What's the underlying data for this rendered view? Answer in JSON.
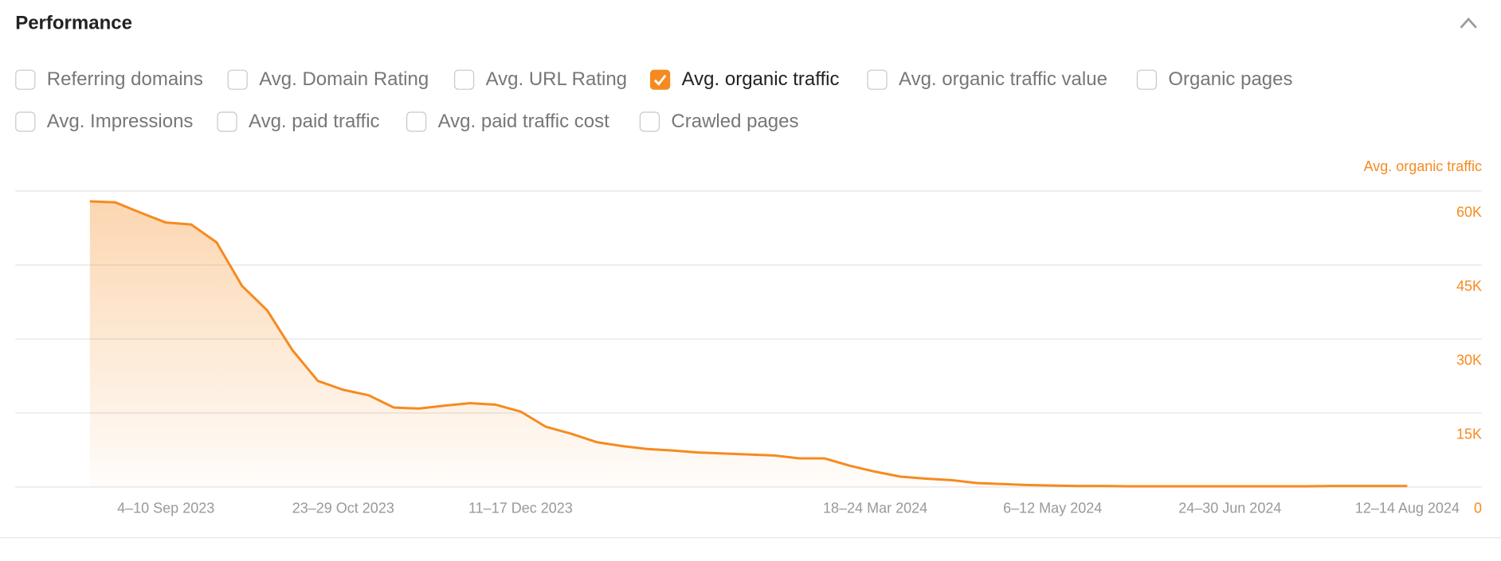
{
  "header": {
    "title": "Performance"
  },
  "checkboxes": [
    {
      "label": "Referring domains",
      "checked": false
    },
    {
      "label": "Avg. Domain Rating",
      "checked": false
    },
    {
      "label": "Avg. URL Rating",
      "checked": false
    },
    {
      "label": "Avg. organic traffic",
      "checked": true
    },
    {
      "label": "Avg. organic traffic value",
      "checked": false
    },
    {
      "label": "Organic pages",
      "checked": false
    },
    {
      "label": "Avg. Impressions",
      "checked": false
    },
    {
      "label": "Avg. paid traffic",
      "checked": false
    },
    {
      "label": "Avg. paid traffic cost",
      "checked": false
    },
    {
      "label": "Crawled pages",
      "checked": false
    }
  ],
  "chart_data": {
    "type": "area",
    "y_label": "Avg. organic traffic",
    "color": "#f68a1f",
    "categories": [
      null,
      null,
      null,
      "4–10 Sep 2023",
      null,
      null,
      null,
      null,
      null,
      null,
      "23–29 Oct 2023",
      null,
      null,
      null,
      null,
      null,
      null,
      "11–17 Dec 2023",
      null,
      null,
      null,
      null,
      null,
      null,
      null,
      null,
      null,
      null,
      null,
      null,
      null,
      "18–24 Mar 2024",
      null,
      null,
      null,
      null,
      null,
      null,
      "6–12 May 2024",
      null,
      null,
      null,
      null,
      null,
      null,
      "24–30 Jun 2024",
      null,
      null,
      null,
      null,
      null,
      null,
      "12–14 Aug 2024"
    ],
    "values": [
      57900,
      57700,
      55600,
      53600,
      53200,
      49600,
      40800,
      35800,
      27700,
      21500,
      19700,
      18600,
      16100,
      15900,
      16500,
      17000,
      16700,
      15300,
      12200,
      10800,
      9100,
      8300,
      7700,
      7400,
      7000,
      6800,
      6600,
      6400,
      5800,
      5800,
      4300,
      3100,
      2100,
      1700,
      1400,
      800,
      600,
      400,
      300,
      200,
      200,
      150,
      150,
      150,
      150,
      150,
      150,
      150,
      150,
      200,
      200,
      200,
      200
    ],
    "ylim": [
      0,
      60000
    ],
    "yticks": [
      {
        "value": 0,
        "label": "0"
      },
      {
        "value": 15000,
        "label": "15K"
      },
      {
        "value": 30000,
        "label": "30K"
      },
      {
        "value": 45000,
        "label": "45K"
      },
      {
        "value": 60000,
        "label": "60K"
      }
    ],
    "grid": true
  }
}
